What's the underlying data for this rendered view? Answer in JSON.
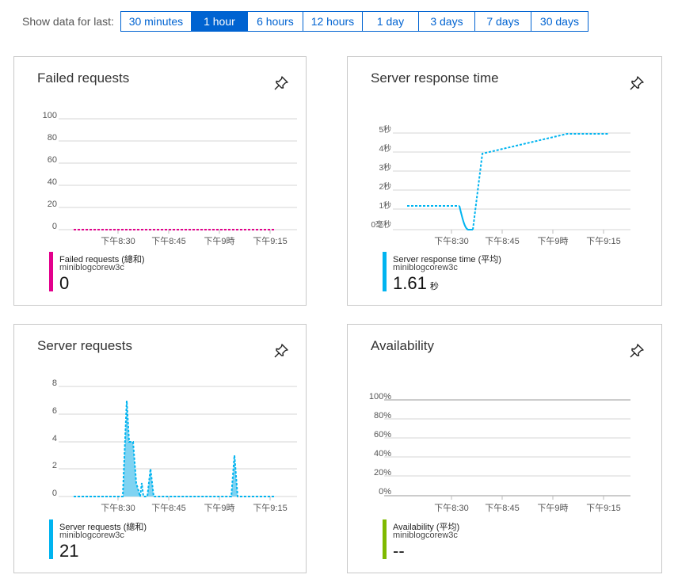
{
  "toolbar": {
    "label": "Show data for last:",
    "ranges": [
      "30 minutes",
      "1 hour",
      "6 hours",
      "12 hours",
      "1 day",
      "3 days",
      "7 days",
      "30 days"
    ],
    "selected": "1 hour"
  },
  "x_ticks": [
    "下午8:30",
    "下午8:45",
    "下午9時",
    "下午9:15"
  ],
  "tiles": {
    "failed": {
      "title": "Failed requests",
      "legend_name": "Failed requests (總和)",
      "resource": "miniblogcorew3c",
      "value": "0",
      "unit": "",
      "color": "#e3008c",
      "y_ticks": [
        "100",
        "80",
        "60",
        "40",
        "20",
        "0"
      ]
    },
    "response": {
      "title": "Server response time",
      "legend_name": "Server response time (平均)",
      "resource": "miniblogcorew3c",
      "value": "1.61",
      "unit": "秒",
      "color": "#00b4f0",
      "y_ticks": [
        "5秒",
        "4秒",
        "3秒",
        "2秒",
        "1秒",
        "0毫秒"
      ]
    },
    "requests": {
      "title": "Server requests",
      "legend_name": "Server requests (總和)",
      "resource": "miniblogcorew3c",
      "value": "21",
      "unit": "",
      "color": "#00b4f0",
      "y_ticks": [
        "8",
        "6",
        "4",
        "2",
        "0"
      ]
    },
    "availability": {
      "title": "Availability",
      "legend_name": "Availability (平均)",
      "resource": "miniblogcorew3c",
      "value": "--",
      "unit": "",
      "color": "#7fba00",
      "y_ticks": [
        "100%",
        "80%",
        "60%",
        "40%",
        "20%",
        "0%"
      ]
    }
  },
  "chart_data": [
    {
      "type": "line",
      "title": "Failed requests",
      "x": [
        "下午8:20",
        "下午8:30",
        "下午8:45",
        "下午9時",
        "下午9:15",
        "下午9:20"
      ],
      "series": [
        {
          "name": "Failed requests (總和)",
          "values": [
            0,
            0,
            0,
            0,
            0,
            0
          ]
        }
      ],
      "ylim": [
        0,
        100
      ]
    },
    {
      "type": "line",
      "title": "Server response time",
      "x": [
        "下午8:20",
        "下午8:28",
        "下午8:30",
        "下午8:32",
        "下午8:34",
        "下午9:05",
        "下午9:15"
      ],
      "series": [
        {
          "name": "Server response time (平均)",
          "values": [
            1.2,
            1.2,
            0,
            0,
            3.9,
            5.0,
            5.0
          ]
        }
      ],
      "ylabel": "秒",
      "ylim": [
        0,
        5
      ]
    },
    {
      "type": "area",
      "title": "Server requests",
      "x": [
        "下午8:20",
        "下午8:28",
        "下午8:29",
        "下午8:30",
        "下午8:31",
        "下午8:32",
        "下午8:33",
        "下午8:34",
        "下午8:35",
        "下午8:36",
        "下午9:00",
        "下午9:01",
        "下午9:02",
        "下午9:15"
      ],
      "series": [
        {
          "name": "Server requests (總和)",
          "values": [
            0,
            0,
            7,
            4,
            4,
            1,
            0,
            2,
            0,
            0,
            0,
            3,
            0,
            0
          ]
        }
      ],
      "ylim": [
        0,
        8
      ]
    },
    {
      "type": "line",
      "title": "Availability",
      "x": [],
      "series": [
        {
          "name": "Availability (平均)",
          "values": []
        }
      ],
      "ylim": [
        0,
        100
      ]
    }
  ]
}
